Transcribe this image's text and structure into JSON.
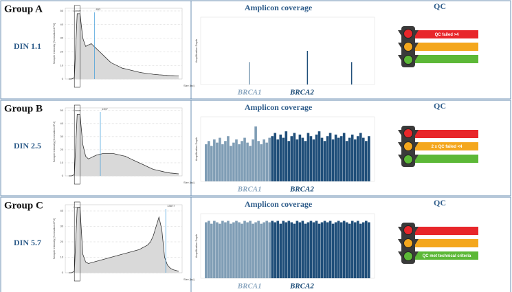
{
  "rows": [
    {
      "group": "Group A",
      "din": "DIN 1.1",
      "electropherogram": {
        "yticks": [
          0,
          10,
          20,
          30,
          40,
          50
        ],
        "ylim": [
          0,
          52
        ],
        "marker": "Lower",
        "peak_label": "853",
        "peak_at": 0.25,
        "x_label": "Size [bp]",
        "y_label": "Sample Intensity [Normalized FU]",
        "profile": [
          0,
          0,
          1,
          48,
          48,
          30,
          24,
          25,
          26,
          24,
          22,
          20,
          18,
          16,
          14,
          12,
          11,
          10,
          9,
          8,
          7.5,
          7,
          6.5,
          6,
          5.5,
          5,
          4.6,
          4.3,
          4,
          3.8,
          3.5,
          3.3,
          3.1,
          3,
          2.8,
          2.6,
          2.5,
          2.4,
          2.3,
          2.2
        ]
      },
      "coverage": {
        "title": "Amplicon coverage",
        "y_label": "Amplification Depth",
        "ylim": [
          0,
          6
        ],
        "brca1_count": 24,
        "genes": [
          "BRCA1",
          "BRCA2"
        ],
        "values": [
          0,
          0,
          0,
          0,
          0,
          0,
          0,
          0,
          0,
          0,
          0,
          0,
          0,
          0,
          0,
          0,
          2,
          0,
          0,
          0,
          0,
          0,
          0,
          0,
          0,
          0,
          0,
          0,
          0,
          0,
          0,
          0,
          0,
          0,
          0,
          0,
          0,
          3,
          0,
          0,
          0,
          0,
          0,
          0,
          0,
          0,
          0,
          0,
          0,
          0,
          0,
          0,
          0,
          2,
          0,
          0,
          0,
          0,
          0,
          0
        ]
      },
      "qc": {
        "title": "QC",
        "bar": "red",
        "text": "QC failed >4"
      }
    },
    {
      "group": "Group B",
      "din": "DIN 2.5",
      "electropherogram": {
        "yticks": [
          0,
          10,
          20,
          30,
          40,
          50
        ],
        "ylim": [
          0,
          52
        ],
        "marker": "Lower",
        "peak_label": "1307",
        "peak_at": 0.3,
        "x_label": "Size [bp]",
        "y_label": "Sample Intensity [Normalized FU]",
        "profile": [
          0,
          0,
          1,
          47,
          47,
          24,
          15,
          13,
          14,
          15,
          16,
          16.5,
          17,
          17,
          17,
          17,
          17,
          16.5,
          16,
          15.5,
          15,
          14,
          13,
          12,
          11,
          10,
          9,
          8,
          7,
          6,
          5,
          4.5,
          4,
          3.5,
          3,
          2.5,
          2.2,
          2,
          1.8,
          1.6
        ]
      },
      "coverage": {
        "title": "Amplicon coverage",
        "y_label": "Amplification Depth",
        "ylim": [
          0,
          4
        ],
        "brca1_count": 24,
        "genes": [
          "BRCA1",
          "BRCA2"
        ],
        "values": [
          2.3,
          2.5,
          2.2,
          2.6,
          2.4,
          2.7,
          2.3,
          2.5,
          2.8,
          2.2,
          2.4,
          2.6,
          2.3,
          2.5,
          2.7,
          2.4,
          2.2,
          2.6,
          3.4,
          2.5,
          2.3,
          2.6,
          2.4,
          2.7,
          2.8,
          3.0,
          2.6,
          2.9,
          2.7,
          3.1,
          2.5,
          2.8,
          3.0,
          2.6,
          2.9,
          2.7,
          2.5,
          3.0,
          2.8,
          2.6,
          2.9,
          3.1,
          2.7,
          2.5,
          2.8,
          3.0,
          2.6,
          2.9,
          2.7,
          2.8,
          3.0,
          2.5,
          2.7,
          2.9,
          2.6,
          2.8,
          3.0,
          2.7,
          2.5,
          2.8
        ]
      },
      "qc": {
        "title": "QC",
        "bar": "orange",
        "text": "2 x QC failed <4"
      }
    },
    {
      "group": "Group C",
      "din": "DIN 5.7",
      "electropherogram": {
        "yticks": [
          0,
          10,
          20,
          30,
          40
        ],
        "ylim": [
          0,
          44
        ],
        "marker": "Lower",
        "peak_label": "13877",
        "peak_at": 0.86,
        "x_label": "Size [bp]",
        "y_label": "Sample Intensity [Normalized FU]",
        "profile": [
          0,
          0,
          1,
          42,
          42,
          12,
          7,
          6,
          6.5,
          7,
          7.5,
          8,
          8.5,
          9,
          9.5,
          10,
          10.5,
          11,
          11.5,
          12,
          12.5,
          13,
          13.5,
          14,
          14.5,
          15,
          16,
          17,
          18,
          20,
          24,
          30,
          36,
          28,
          10,
          5,
          3,
          2,
          1.5,
          1
        ]
      },
      "coverage": {
        "title": "Amplicon coverage",
        "y_label": "Amplification Depth",
        "ylim": [
          0,
          4.5
        ],
        "brca1_count": 24,
        "genes": [
          "BRCA1",
          "BRCA2"
        ],
        "values": [
          3.9,
          4.0,
          3.8,
          4.0,
          3.9,
          3.8,
          4.0,
          3.9,
          4.0,
          3.8,
          3.9,
          4.0,
          3.9,
          3.8,
          4.0,
          3.9,
          4.0,
          3.8,
          3.9,
          4.0,
          3.8,
          3.9,
          4.0,
          3.9,
          4.0,
          3.9,
          4.0,
          3.8,
          4.0,
          3.9,
          4.0,
          3.9,
          3.8,
          4.0,
          3.9,
          4.0,
          3.8,
          3.9,
          4.0,
          3.9,
          4.0,
          3.8,
          3.9,
          4.0,
          3.9,
          4.0,
          3.8,
          3.9,
          4.0,
          3.9,
          4.0,
          3.9,
          3.8,
          4.0,
          3.9,
          4.0,
          3.8,
          3.9,
          4.0,
          3.9
        ]
      },
      "qc": {
        "title": "QC",
        "bar": "green",
        "text": "QC met technical criteria"
      }
    }
  ]
}
